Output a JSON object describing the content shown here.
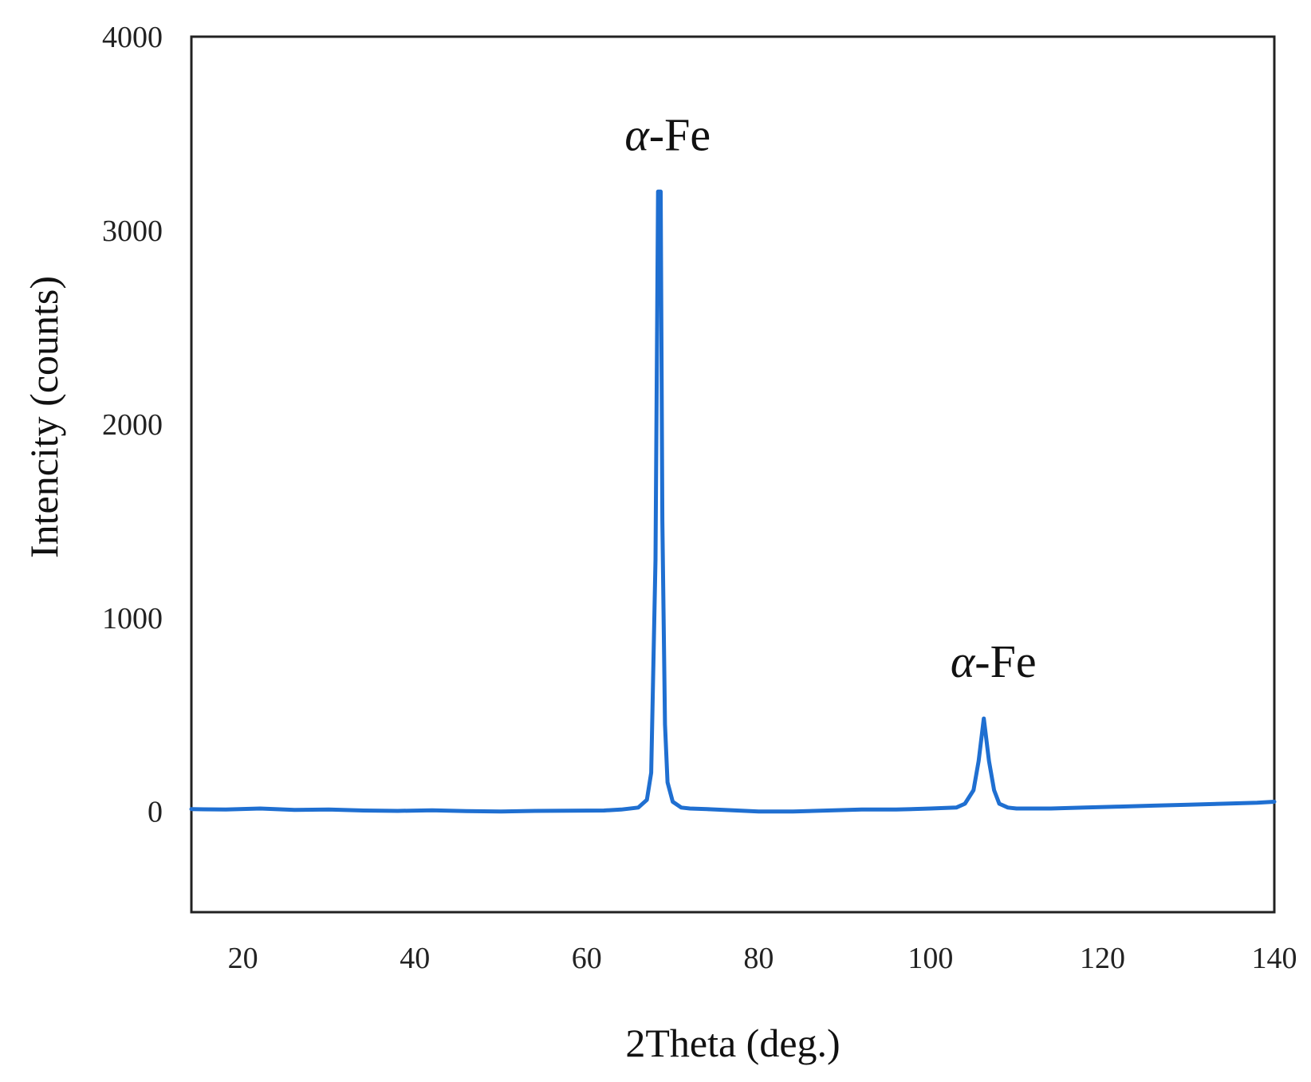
{
  "chart_data": {
    "type": "line",
    "title": "",
    "xlabel": "2Theta (deg.)",
    "ylabel": "Intencity (counts)",
    "xlim": [
      14,
      140
    ],
    "ylim": [
      -520,
      4000
    ],
    "x_ticks": [
      20,
      40,
      60,
      80,
      100,
      120,
      140
    ],
    "y_ticks": [
      0,
      1000,
      2000,
      3000,
      4000
    ],
    "x_tick_labels": [
      "20",
      "40",
      "60",
      "80",
      "100",
      "120",
      "140"
    ],
    "y_tick_labels": [
      "0",
      "1000",
      "2000",
      "3000",
      "4000"
    ],
    "grid": false,
    "legend": "none",
    "line_color": "#1f6fd1",
    "series": [
      {
        "x": [
          14,
          18,
          22,
          26,
          30,
          34,
          38,
          42,
          46,
          50,
          54,
          58,
          62,
          64,
          66,
          67,
          67.5,
          68,
          68.3,
          68.6,
          68.8,
          69.1,
          69.4,
          70,
          71,
          72,
          74,
          76,
          80,
          84,
          88,
          92,
          96,
          100,
          103,
          104,
          105,
          105.6,
          106.2,
          106.8,
          107.4,
          108,
          109,
          110,
          114,
          118,
          122,
          126,
          130,
          134,
          138,
          140
        ],
        "y": [
          12,
          10,
          15,
          8,
          10,
          5,
          3,
          6,
          2,
          0,
          3,
          4,
          5,
          10,
          20,
          60,
          200,
          1300,
          3200,
          3200,
          1500,
          450,
          150,
          50,
          20,
          15,
          12,
          8,
          0,
          0,
          5,
          10,
          10,
          15,
          20,
          40,
          110,
          260,
          480,
          260,
          110,
          40,
          20,
          15,
          15,
          20,
          25,
          30,
          35,
          40,
          45,
          50
        ]
      }
    ],
    "annotations": [
      {
        "text": "α",
        "suffix": "-Fe",
        "x": 68.3,
        "y": 3200
      },
      {
        "text": "α",
        "suffix": "-Fe",
        "x": 106.2,
        "y": 480
      }
    ]
  }
}
